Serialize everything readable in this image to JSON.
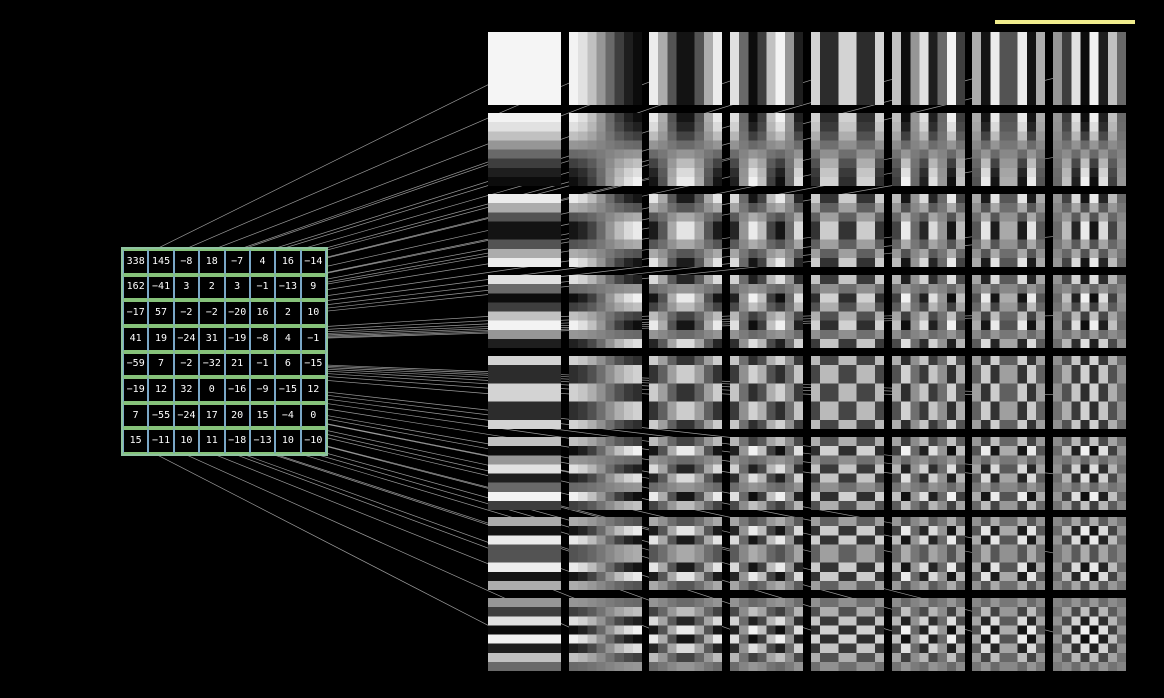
{
  "coefficients": [
    [
      "338",
      "145",
      "−8",
      "18",
      "−7",
      "4",
      "16",
      "−14"
    ],
    [
      "162",
      "−41",
      "3",
      "2",
      "3",
      "−1",
      "−13",
      "9"
    ],
    [
      "−17",
      "57",
      "−2",
      "−2",
      "−20",
      "16",
      "2",
      "10"
    ],
    [
      "41",
      "19",
      "−24",
      "31",
      "−19",
      "−8",
      "4",
      "−1"
    ],
    [
      "−59",
      "7",
      "−2",
      "−32",
      "21",
      "−1",
      "6",
      "−15"
    ],
    [
      "−19",
      "12",
      "32",
      "0",
      "−16",
      "−9",
      "−15",
      "12"
    ],
    [
      "7",
      "−55",
      "−24",
      "17",
      "20",
      "15",
      "−4",
      "0"
    ],
    [
      "15",
      "−11",
      "10",
      "11",
      "−18",
      "−13",
      "10",
      "−10"
    ]
  ],
  "colors": {
    "background": "#000000",
    "connector": "#cfcfcf",
    "matrix_border": "#8fc4a0",
    "row_divider": "#86c27a",
    "column_divider": "#7aa7c7",
    "scale_bar": "#f0ec8c"
  }
}
